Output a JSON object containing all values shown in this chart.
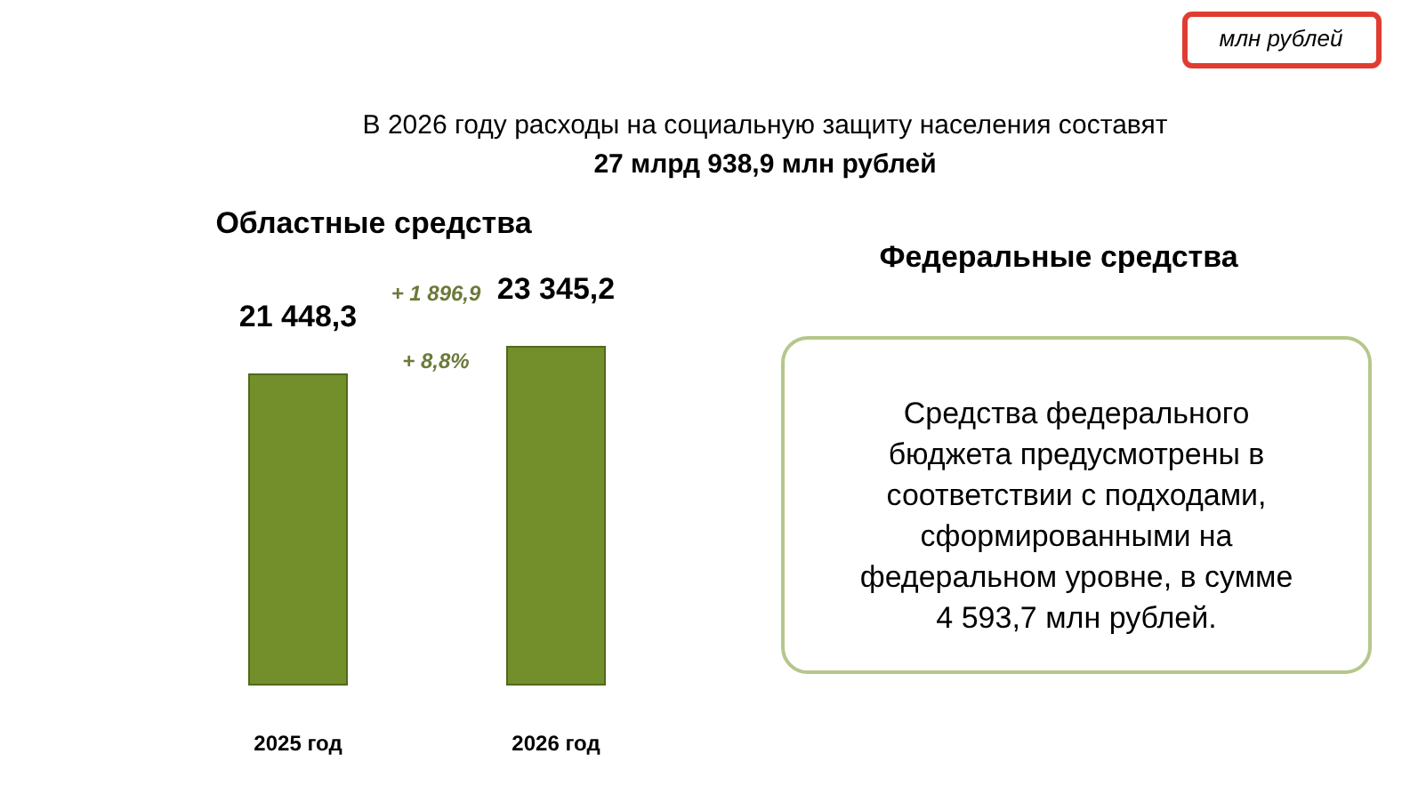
{
  "chart_data": {
    "type": "bar",
    "categories": [
      "2025 год",
      "2026 год"
    ],
    "values": [
      21448.3,
      23345.2
    ],
    "value_labels": [
      "21 448,3",
      "23 345,2"
    ],
    "color": "#728f2b",
    "annotations": [
      "млн  рублей",
      "В 2026 году расходы на социальную защиту населения составят",
      "27 млрд 938,9 млн рублей",
      "Областные средства",
      "Федеральные средства",
      "+ 1 896,9",
      "+ 8,8%",
      "Средства федерального\nбюджета предусмотрены в\nсоответствии с подходами,\nсформированными на\nфедеральном уровне, в сумме\n4 593,7 млн рублей."
    ]
  }
}
